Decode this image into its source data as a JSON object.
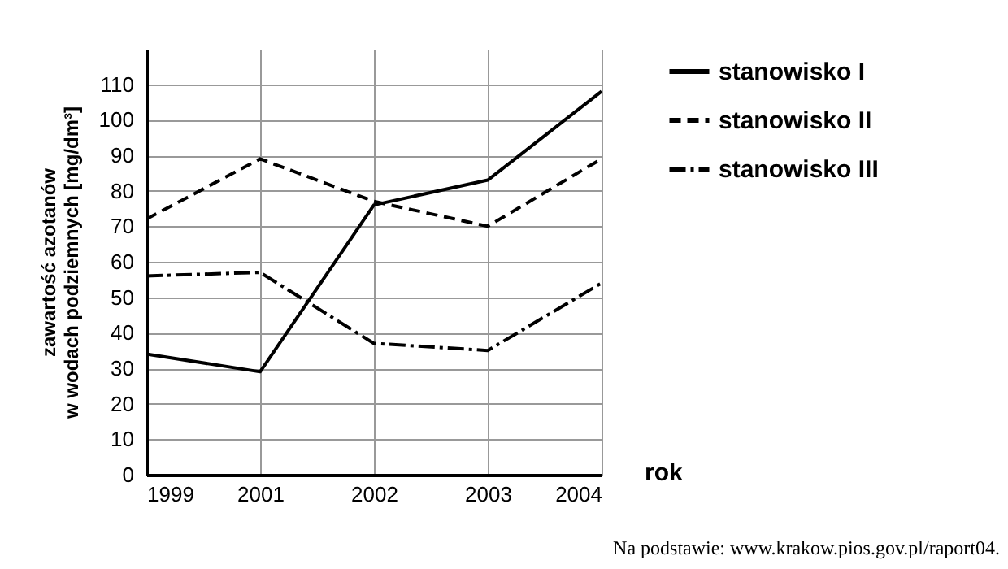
{
  "chart_data": {
    "type": "line",
    "ylabel": "zawartość azotanów\nw wodach podziemnych [mg/dm³]",
    "xlabel": "rok",
    "categories": [
      "1999",
      "2001",
      "2002",
      "2003",
      "2004"
    ],
    "series": [
      {
        "name": "stanowisko I",
        "color": "#000000",
        "line_style": "solid",
        "values": [
          34,
          29,
          76,
          83,
          108
        ]
      },
      {
        "name": "stanowisko II",
        "color": "#000000",
        "line_style": "dashed",
        "values": [
          72,
          89,
          77,
          70,
          89
        ]
      },
      {
        "name": "stanowisko III",
        "color": "#000000",
        "line_style": "dashdot",
        "values": [
          56,
          57,
          37,
          35,
          54
        ]
      }
    ],
    "ylim": [
      0,
      120
    ],
    "yticks": [
      0,
      10,
      20,
      30,
      40,
      50,
      60,
      70,
      80,
      90,
      100,
      110
    ],
    "grid": true,
    "legend": "right",
    "marker": "none",
    "annotations": [
      "Na podstawie: www.krakow.pios.gov.pl/raport04."
    ]
  }
}
